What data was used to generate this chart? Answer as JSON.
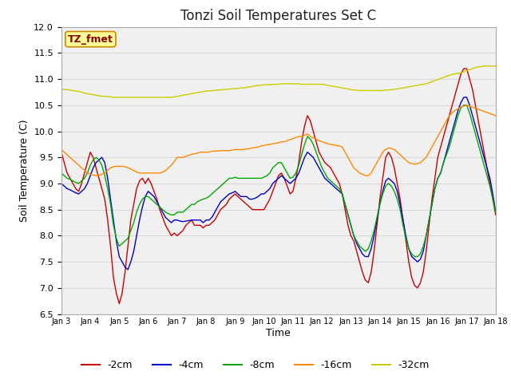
{
  "title": "Tonzi Soil Temperatures Set C",
  "xlabel": "Time",
  "ylabel": "Soil Temperature (C)",
  "ylim": [
    6.5,
    12.0
  ],
  "x_tick_labels": [
    "Jan 3",
    "Jan 4",
    "Jan 5",
    "Jan 6",
    "Jan 7",
    "Jan 8",
    "Jan 9",
    "Jan 10",
    "Jan 11",
    "Jan 12",
    "Jan 13",
    "Jan 14",
    "Jan 15",
    "Jan 16",
    "Jan 17",
    "Jan 18"
  ],
  "legend_labels": [
    "-2cm",
    "-4cm",
    "-8cm",
    "-16cm",
    "-32cm"
  ],
  "legend_colors": [
    "#cc0000",
    "#0000cc",
    "#00aa00",
    "#ff8800",
    "#cccc00"
  ],
  "annotation_text": "TZ_fmet",
  "annotation_bg": "#ffff99",
  "annotation_border": "#cc8800",
  "background_color": "#ffffff",
  "plot_bg": "#f0f0f0",
  "grid_color": "#d8d8d8",
  "title_fontsize": 12,
  "series_m2cm_color": "#cc0000",
  "series_m4cm_color": "#0000cc",
  "series_m8cm_color": "#00aa00",
  "series_m16cm_color": "#ff8800",
  "series_m32cm_color": "#cccc00",
  "m2cm_x": [
    0,
    0.1,
    0.2,
    0.3,
    0.4,
    0.5,
    0.6,
    0.7,
    0.8,
    0.9,
    1.0,
    1.1,
    1.2,
    1.3,
    1.4,
    1.5,
    1.6,
    1.7,
    1.8,
    1.9,
    2.0,
    2.1,
    2.2,
    2.3,
    2.4,
    2.5,
    2.6,
    2.7,
    2.8,
    2.9,
    3.0,
    3.1,
    3.2,
    3.3,
    3.4,
    3.5,
    3.6,
    3.7,
    3.8,
    3.9,
    4.0,
    4.1,
    4.2,
    4.3,
    4.4,
    4.5,
    4.6,
    4.7,
    4.8,
    4.9,
    5.0,
    5.1,
    5.2,
    5.3,
    5.4,
    5.5,
    5.6,
    5.7,
    5.8,
    5.9,
    6.0,
    6.1,
    6.2,
    6.3,
    6.4,
    6.5,
    6.6,
    6.7,
    6.8,
    6.9,
    7.0,
    7.1,
    7.2,
    7.3,
    7.4,
    7.5,
    7.6,
    7.7,
    7.8,
    7.9,
    8.0,
    8.1,
    8.2,
    8.3,
    8.4,
    8.5,
    8.6,
    8.7,
    8.8,
    8.9,
    9.0,
    9.1,
    9.2,
    9.3,
    9.4,
    9.5,
    9.6,
    9.7,
    9.8,
    9.9,
    10.0,
    10.1,
    10.2,
    10.3,
    10.4,
    10.5,
    10.6,
    10.7,
    10.8,
    10.9,
    11.0,
    11.1,
    11.2,
    11.3,
    11.4,
    11.5,
    11.6,
    11.7,
    11.8,
    11.9,
    12.0,
    12.1,
    12.2,
    12.3,
    12.4,
    12.5,
    12.6,
    12.7,
    12.8,
    12.9,
    13.0,
    13.1,
    13.2,
    13.3,
    13.4,
    13.5,
    13.6,
    13.7,
    13.8,
    13.9,
    14.0,
    14.1,
    14.2,
    14.3,
    14.4,
    14.5,
    14.6,
    14.7,
    14.8,
    14.9,
    15.0
  ],
  "m2cm_y": [
    9.6,
    9.4,
    9.2,
    9.1,
    9.0,
    8.9,
    8.85,
    9.0,
    9.2,
    9.4,
    9.6,
    9.5,
    9.3,
    9.1,
    8.9,
    8.7,
    8.3,
    7.8,
    7.2,
    6.9,
    6.7,
    6.9,
    7.3,
    7.8,
    8.3,
    8.6,
    8.9,
    9.05,
    9.1,
    9.0,
    9.1,
    9.0,
    8.85,
    8.7,
    8.5,
    8.35,
    8.2,
    8.1,
    8.0,
    8.05,
    8.0,
    8.05,
    8.1,
    8.2,
    8.25,
    8.3,
    8.2,
    8.2,
    8.2,
    8.15,
    8.2,
    8.2,
    8.25,
    8.3,
    8.4,
    8.5,
    8.55,
    8.6,
    8.7,
    8.75,
    8.8,
    8.75,
    8.7,
    8.65,
    8.6,
    8.55,
    8.5,
    8.5,
    8.5,
    8.5,
    8.5,
    8.6,
    8.7,
    8.85,
    9.0,
    9.15,
    9.2,
    9.1,
    8.95,
    8.8,
    8.85,
    9.1,
    9.4,
    9.8,
    10.1,
    10.3,
    10.2,
    10.0,
    9.8,
    9.6,
    9.5,
    9.4,
    9.35,
    9.3,
    9.2,
    9.1,
    9.0,
    8.8,
    8.5,
    8.2,
    8.0,
    7.9,
    7.7,
    7.5,
    7.3,
    7.15,
    7.1,
    7.3,
    7.7,
    8.2,
    8.7,
    9.1,
    9.5,
    9.6,
    9.5,
    9.3,
    9.0,
    8.7,
    8.3,
    7.9,
    7.5,
    7.2,
    7.05,
    7.0,
    7.1,
    7.3,
    7.7,
    8.2,
    8.7,
    9.1,
    9.5,
    9.7,
    9.9,
    10.1,
    10.3,
    10.5,
    10.7,
    10.9,
    11.1,
    11.2,
    11.2,
    11.0,
    10.8,
    10.5,
    10.2,
    9.9,
    9.6,
    9.3,
    9.0,
    8.7,
    8.4
  ],
  "m4cm_y": [
    9.0,
    8.95,
    8.9,
    8.88,
    8.85,
    8.82,
    8.8,
    8.85,
    8.9,
    9.0,
    9.15,
    9.3,
    9.4,
    9.45,
    9.5,
    9.4,
    9.1,
    8.7,
    8.3,
    7.9,
    7.6,
    7.5,
    7.4,
    7.35,
    7.5,
    7.7,
    8.0,
    8.3,
    8.55,
    8.75,
    8.85,
    8.8,
    8.75,
    8.65,
    8.55,
    8.45,
    8.35,
    8.3,
    8.25,
    8.3,
    8.3,
    8.28,
    8.27,
    8.28,
    8.29,
    8.3,
    8.3,
    8.3,
    8.3,
    8.25,
    8.3,
    8.3,
    8.35,
    8.45,
    8.55,
    8.65,
    8.7,
    8.75,
    8.8,
    8.82,
    8.85,
    8.8,
    8.75,
    8.75,
    8.75,
    8.7,
    8.7,
    8.72,
    8.75,
    8.8,
    8.8,
    8.85,
    8.9,
    9.0,
    9.05,
    9.1,
    9.15,
    9.1,
    9.05,
    9.0,
    9.05,
    9.1,
    9.2,
    9.35,
    9.5,
    9.6,
    9.55,
    9.5,
    9.4,
    9.3,
    9.2,
    9.1,
    9.05,
    9.0,
    8.95,
    8.9,
    8.85,
    8.8,
    8.6,
    8.4,
    8.2,
    8.0,
    7.85,
    7.75,
    7.65,
    7.6,
    7.6,
    7.75,
    8.0,
    8.3,
    8.6,
    8.85,
    9.05,
    9.1,
    9.05,
    9.0,
    8.85,
    8.6,
    8.3,
    8.0,
    7.75,
    7.6,
    7.55,
    7.5,
    7.55,
    7.7,
    8.0,
    8.3,
    8.6,
    8.9,
    9.1,
    9.2,
    9.4,
    9.6,
    9.8,
    10.0,
    10.2,
    10.4,
    10.55,
    10.65,
    10.65,
    10.5,
    10.3,
    10.1,
    9.9,
    9.7,
    9.5,
    9.3,
    9.1,
    8.8,
    8.45
  ],
  "m8cm_y": [
    9.2,
    9.15,
    9.1,
    9.08,
    9.05,
    9.02,
    9.0,
    9.05,
    9.1,
    9.2,
    9.35,
    9.45,
    9.5,
    9.45,
    9.35,
    9.15,
    8.9,
    8.6,
    8.2,
    7.95,
    7.8,
    7.85,
    7.9,
    7.95,
    8.1,
    8.25,
    8.45,
    8.6,
    8.7,
    8.75,
    8.75,
    8.7,
    8.65,
    8.6,
    8.55,
    8.5,
    8.45,
    8.42,
    8.4,
    8.4,
    8.45,
    8.45,
    8.45,
    8.5,
    8.55,
    8.6,
    8.6,
    8.65,
    8.68,
    8.7,
    8.72,
    8.75,
    8.8,
    8.85,
    8.9,
    8.95,
    9.0,
    9.05,
    9.1,
    9.1,
    9.12,
    9.1,
    9.1,
    9.1,
    9.1,
    9.1,
    9.1,
    9.1,
    9.1,
    9.1,
    9.12,
    9.15,
    9.2,
    9.3,
    9.35,
    9.4,
    9.4,
    9.3,
    9.2,
    9.1,
    9.12,
    9.2,
    9.35,
    9.55,
    9.75,
    9.9,
    9.85,
    9.75,
    9.6,
    9.45,
    9.3,
    9.2,
    9.1,
    9.05,
    9.0,
    8.95,
    8.9,
    8.8,
    8.6,
    8.4,
    8.2,
    8.0,
    7.9,
    7.8,
    7.75,
    7.7,
    7.75,
    7.9,
    8.1,
    8.35,
    8.6,
    8.8,
    8.95,
    9.0,
    8.95,
    8.85,
    8.7,
    8.5,
    8.2,
    7.95,
    7.75,
    7.65,
    7.6,
    7.6,
    7.65,
    7.8,
    8.0,
    8.3,
    8.6,
    8.9,
    9.1,
    9.2,
    9.4,
    9.55,
    9.7,
    9.9,
    10.1,
    10.3,
    10.45,
    10.5,
    10.5,
    10.35,
    10.15,
    9.95,
    9.75,
    9.55,
    9.35,
    9.15,
    8.95,
    8.7,
    8.45
  ],
  "m16cm_y": [
    9.65,
    9.6,
    9.55,
    9.5,
    9.45,
    9.4,
    9.35,
    9.3,
    9.25,
    9.2,
    9.18,
    9.16,
    9.15,
    9.15,
    9.18,
    9.2,
    9.25,
    9.3,
    9.32,
    9.33,
    9.33,
    9.33,
    9.32,
    9.3,
    9.28,
    9.25,
    9.22,
    9.2,
    9.2,
    9.2,
    9.2,
    9.2,
    9.2,
    9.2,
    9.2,
    9.22,
    9.25,
    9.3,
    9.35,
    9.42,
    9.5,
    9.5,
    9.5,
    9.52,
    9.54,
    9.56,
    9.57,
    9.58,
    9.6,
    9.6,
    9.6,
    9.6,
    9.62,
    9.62,
    9.62,
    9.63,
    9.63,
    9.63,
    9.63,
    9.64,
    9.65,
    9.65,
    9.65,
    9.65,
    9.66,
    9.67,
    9.68,
    9.69,
    9.7,
    9.72,
    9.73,
    9.74,
    9.75,
    9.76,
    9.77,
    9.78,
    9.8,
    9.8,
    9.82,
    9.84,
    9.86,
    9.88,
    9.9,
    9.9,
    9.92,
    9.95,
    9.9,
    9.87,
    9.85,
    9.82,
    9.8,
    9.78,
    9.76,
    9.75,
    9.74,
    9.73,
    9.72,
    9.7,
    9.6,
    9.5,
    9.4,
    9.3,
    9.25,
    9.2,
    9.18,
    9.15,
    9.15,
    9.2,
    9.3,
    9.4,
    9.5,
    9.6,
    9.65,
    9.68,
    9.67,
    9.65,
    9.6,
    9.55,
    9.5,
    9.45,
    9.4,
    9.38,
    9.37,
    9.38,
    9.4,
    9.45,
    9.5,
    9.6,
    9.7,
    9.8,
    9.9,
    10.0,
    10.1,
    10.2,
    10.3,
    10.35,
    10.4,
    10.43,
    10.46,
    10.48,
    10.5,
    10.48,
    10.46,
    10.44,
    10.42,
    10.4,
    10.38,
    10.36,
    10.34,
    10.32,
    10.3
  ],
  "m32cm_y": [
    10.8,
    10.8,
    10.8,
    10.79,
    10.78,
    10.77,
    10.76,
    10.75,
    10.73,
    10.72,
    10.71,
    10.7,
    10.69,
    10.68,
    10.67,
    10.67,
    10.66,
    10.66,
    10.65,
    10.65,
    10.65,
    10.65,
    10.65,
    10.65,
    10.65,
    10.65,
    10.65,
    10.65,
    10.65,
    10.65,
    10.65,
    10.65,
    10.65,
    10.65,
    10.65,
    10.65,
    10.65,
    10.65,
    10.65,
    10.66,
    10.67,
    10.68,
    10.69,
    10.7,
    10.71,
    10.72,
    10.73,
    10.74,
    10.75,
    10.76,
    10.77,
    10.77,
    10.78,
    10.78,
    10.79,
    10.79,
    10.8,
    10.8,
    10.81,
    10.81,
    10.82,
    10.82,
    10.83,
    10.83,
    10.84,
    10.85,
    10.86,
    10.87,
    10.88,
    10.88,
    10.89,
    10.89,
    10.89,
    10.9,
    10.9,
    10.9,
    10.91,
    10.91,
    10.91,
    10.91,
    10.91,
    10.91,
    10.91,
    10.9,
    10.9,
    10.9,
    10.9,
    10.9,
    10.9,
    10.9,
    10.9,
    10.89,
    10.88,
    10.87,
    10.86,
    10.85,
    10.84,
    10.83,
    10.82,
    10.81,
    10.8,
    10.79,
    10.79,
    10.78,
    10.78,
    10.78,
    10.78,
    10.78,
    10.78,
    10.78,
    10.78,
    10.78,
    10.79,
    10.79,
    10.8,
    10.8,
    10.81,
    10.82,
    10.83,
    10.84,
    10.85,
    10.86,
    10.87,
    10.88,
    10.89,
    10.9,
    10.91,
    10.93,
    10.95,
    10.97,
    10.99,
    11.01,
    11.03,
    11.05,
    11.07,
    11.09,
    11.1,
    11.11,
    11.12,
    11.14,
    11.16,
    11.18,
    11.2,
    11.22,
    11.23,
    11.24,
    11.25,
    11.25,
    11.25,
    11.25,
    11.25
  ]
}
